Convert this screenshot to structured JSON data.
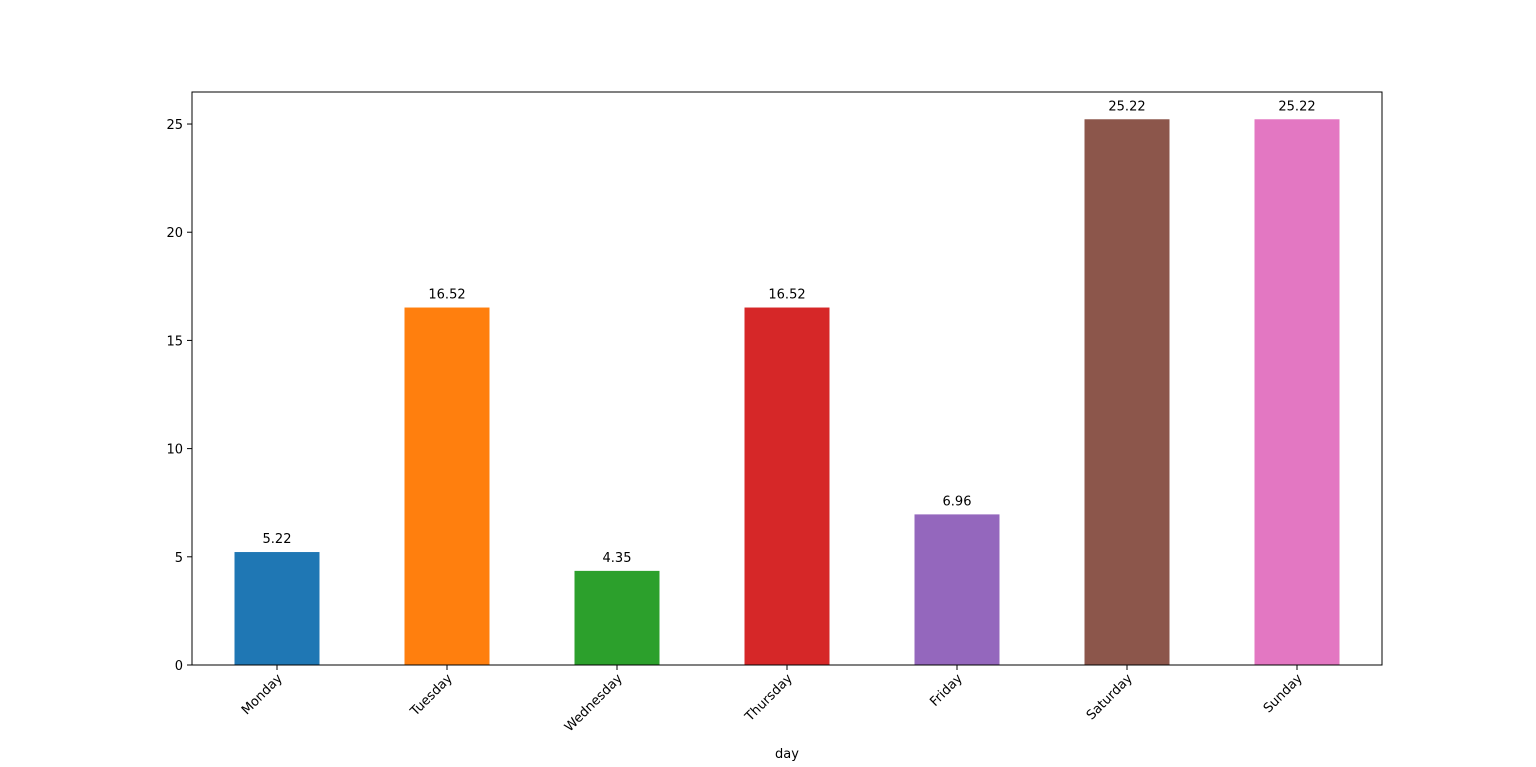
{
  "chart_data": {
    "type": "bar",
    "categories": [
      "Monday",
      "Tuesday",
      "Wednesday",
      "Thursday",
      "Friday",
      "Saturday",
      "Sunday"
    ],
    "values": [
      5.22,
      16.52,
      4.35,
      16.52,
      6.96,
      25.22,
      25.22
    ],
    "data_labels": [
      "5.22",
      "16.52",
      "4.35",
      "16.52",
      "6.96",
      "25.22",
      "25.22"
    ],
    "colors": [
      "#1f77b4",
      "#ff7f0e",
      "#2ca02c",
      "#d62728",
      "#9467bd",
      "#8c564b",
      "#e377c2"
    ],
    "xlabel": "day",
    "ylabel": "",
    "title": "",
    "ylim": [
      0,
      26.48
    ],
    "yticks": [
      0,
      5,
      10,
      15,
      20,
      25
    ],
    "grid": false,
    "legend": "none"
  }
}
